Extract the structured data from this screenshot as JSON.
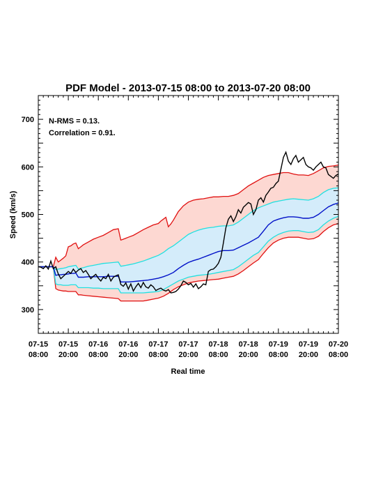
{
  "chart_data": {
    "type": "line",
    "title": "PDF Model - 2013-07-15 08:00 to 2013-07-20 08:00",
    "xlabel": "Real time",
    "ylabel": "Speed (km/s)",
    "annotations": [
      "N-RMS = 0.13.",
      "Correlation = 0.91."
    ],
    "xlim": [
      0,
      120
    ],
    "ylim": [
      250,
      750
    ],
    "x_unit": "hours after 2013-07-15 08:00",
    "x_ticks": [
      {
        "value": 0,
        "line1": "07-15",
        "line2": "08:00"
      },
      {
        "value": 12,
        "line1": "07-15",
        "line2": "20:00"
      },
      {
        "value": 24,
        "line1": "07-16",
        "line2": "08:00"
      },
      {
        "value": 36,
        "line1": "07-16",
        "line2": "20:00"
      },
      {
        "value": 48,
        "line1": "07-17",
        "line2": "08:00"
      },
      {
        "value": 60,
        "line1": "07-17",
        "line2": "20:00"
      },
      {
        "value": 72,
        "line1": "07-18",
        "line2": "08:00"
      },
      {
        "value": 84,
        "line1": "07-18",
        "line2": "20:00"
      },
      {
        "value": 96,
        "line1": "07-19",
        "line2": "08:00"
      },
      {
        "value": 108,
        "line1": "07-19",
        "line2": "20:00"
      },
      {
        "value": 120,
        "line1": "07-20",
        "line2": "08:00"
      }
    ],
    "y_ticks": [
      300,
      400,
      500,
      600,
      700
    ],
    "colors": {
      "outer_band_fill": "#fdd8d2",
      "inner_band_fill": "#d4ecfa",
      "outer_line": "#e01010",
      "inner_line": "#20e0e0",
      "median_line": "#0010c8",
      "observed_line": "#000000"
    },
    "series": [
      {
        "role": "outer-upper",
        "x": [
          0,
          6,
          7,
          8,
          9,
          10,
          11,
          12,
          13,
          14,
          15,
          16,
          17,
          18,
          20,
          22,
          24,
          26,
          28,
          30,
          32,
          33,
          34,
          35,
          36,
          38,
          40,
          42,
          44,
          46,
          48,
          49,
          50,
          51,
          52,
          53,
          54,
          56,
          58,
          60,
          62,
          64,
          66,
          68,
          70,
          72,
          74,
          76,
          78,
          80,
          82,
          84,
          86,
          88,
          90,
          92,
          94,
          96,
          98,
          100,
          102,
          104,
          106,
          108,
          110,
          112,
          114,
          116,
          118,
          120
        ],
        "y": [
          390,
          390,
          410,
          400,
          404,
          408,
          413,
          432,
          434,
          438,
          440,
          428,
          432,
          436,
          442,
          448,
          452,
          456,
          462,
          468,
          470,
          446,
          448,
          450,
          452,
          456,
          462,
          468,
          473,
          478,
          481,
          486,
          490,
          494,
          474,
          480,
          488,
          506,
          518,
          526,
          530,
          532,
          533,
          535,
          537,
          537,
          538,
          538,
          540,
          544,
          552,
          560,
          566,
          572,
          578,
          582,
          584,
          586,
          588,
          588,
          585,
          583,
          583,
          582,
          586,
          592,
          598,
          601,
          602,
          604
        ]
      },
      {
        "role": "inner-upper",
        "x": [
          0,
          6,
          7,
          8,
          9,
          10,
          11,
          12,
          13,
          14,
          15,
          16,
          17,
          18,
          20,
          22,
          24,
          26,
          28,
          30,
          32,
          33,
          34,
          35,
          36,
          38,
          40,
          42,
          44,
          46,
          48,
          50,
          52,
          54,
          56,
          58,
          60,
          62,
          64,
          66,
          68,
          70,
          72,
          74,
          76,
          78,
          80,
          82,
          84,
          86,
          88,
          90,
          92,
          94,
          96,
          98,
          100,
          102,
          104,
          106,
          108,
          110,
          112,
          114,
          116,
          118,
          120
        ],
        "y": [
          390,
          390,
          384,
          385,
          386,
          387,
          388,
          390,
          391,
          392,
          393,
          385,
          387,
          388,
          391,
          393,
          395,
          397,
          398,
          399,
          400,
          391,
          392,
          393,
          394,
          396,
          399,
          402,
          406,
          410,
          414,
          420,
          428,
          434,
          442,
          450,
          458,
          463,
          467,
          470,
          472,
          473,
          475,
          476,
          476,
          478,
          484,
          492,
          500,
          508,
          514,
          518,
          522,
          526,
          528,
          530,
          532,
          533,
          532,
          531,
          530,
          533,
          538,
          546,
          552,
          555,
          556
        ]
      },
      {
        "role": "median",
        "x": [
          0,
          6,
          7,
          8,
          9,
          10,
          11,
          12,
          13,
          14,
          15,
          16,
          17,
          18,
          20,
          22,
          24,
          26,
          28,
          30,
          32,
          33,
          34,
          35,
          36,
          38,
          40,
          42,
          44,
          46,
          48,
          50,
          52,
          54,
          56,
          58,
          60,
          62,
          64,
          66,
          68,
          70,
          72,
          74,
          76,
          78,
          80,
          82,
          84,
          86,
          88,
          90,
          92,
          94,
          96,
          98,
          100,
          102,
          104,
          106,
          108,
          110,
          112,
          114,
          116,
          118,
          120
        ],
        "y": [
          390,
          390,
          372,
          373,
          373,
          374,
          374,
          375,
          376,
          376,
          377,
          368,
          368,
          368,
          369,
          369,
          369,
          369,
          370,
          370,
          370,
          358,
          358,
          358,
          358,
          359,
          360,
          361,
          362,
          364,
          366,
          369,
          373,
          378,
          386,
          393,
          399,
          403,
          406,
          410,
          414,
          418,
          422,
          424,
          424,
          425,
          430,
          435,
          440,
          446,
          452,
          465,
          478,
          486,
          490,
          493,
          495,
          495,
          494,
          492,
          492,
          494,
          500,
          508,
          516,
          521,
          524
        ]
      },
      {
        "role": "inner-lower",
        "x": [
          0,
          6,
          7,
          8,
          9,
          10,
          11,
          12,
          13,
          14,
          15,
          16,
          17,
          18,
          20,
          22,
          24,
          26,
          28,
          30,
          32,
          33,
          34,
          35,
          36,
          38,
          40,
          42,
          44,
          46,
          48,
          50,
          52,
          54,
          56,
          58,
          60,
          62,
          64,
          66,
          68,
          70,
          72,
          74,
          76,
          78,
          80,
          82,
          84,
          86,
          88,
          90,
          92,
          94,
          96,
          98,
          100,
          102,
          104,
          106,
          108,
          110,
          112,
          114,
          116,
          118,
          120
        ],
        "y": [
          390,
          390,
          354,
          352,
          352,
          351,
          351,
          351,
          352,
          352,
          352,
          346,
          346,
          346,
          346,
          345,
          345,
          344,
          344,
          344,
          344,
          335,
          335,
          335,
          335,
          335,
          335,
          335,
          336,
          337,
          338,
          342,
          348,
          354,
          360,
          364,
          368,
          370,
          372,
          373,
          374,
          376,
          378,
          380,
          382,
          384,
          390,
          398,
          406,
          414,
          420,
          432,
          444,
          452,
          458,
          462,
          465,
          466,
          466,
          464,
          462,
          463,
          468,
          478,
          486,
          492,
          496
        ]
      },
      {
        "role": "outer-lower",
        "x": [
          0,
          6,
          7,
          8,
          9,
          10,
          11,
          12,
          13,
          14,
          15,
          16,
          17,
          18,
          20,
          22,
          24,
          26,
          28,
          30,
          32,
          33,
          34,
          35,
          36,
          38,
          40,
          42,
          44,
          46,
          48,
          50,
          52,
          54,
          56,
          58,
          60,
          62,
          64,
          66,
          68,
          70,
          72,
          74,
          76,
          78,
          80,
          82,
          84,
          86,
          88,
          90,
          92,
          94,
          96,
          98,
          100,
          102,
          104,
          106,
          108,
          110,
          112,
          114,
          116,
          118,
          120
        ],
        "y": [
          390,
          390,
          344,
          341,
          340,
          339,
          339,
          338,
          338,
          338,
          338,
          331,
          331,
          330,
          329,
          328,
          327,
          326,
          325,
          324,
          323,
          318,
          318,
          318,
          318,
          318,
          318,
          318,
          320,
          322,
          324,
          328,
          334,
          342,
          348,
          352,
          356,
          358,
          360,
          361,
          362,
          363,
          364,
          366,
          368,
          370,
          375,
          382,
          390,
          398,
          405,
          418,
          430,
          440,
          446,
          450,
          452,
          452,
          452,
          450,
          448,
          449,
          454,
          464,
          472,
          478,
          481
        ]
      },
      {
        "role": "observed",
        "x": [
          0,
          1,
          2,
          3,
          4,
          5,
          6,
          7,
          8,
          9,
          10,
          11,
          12,
          13,
          14,
          15,
          16,
          17,
          18,
          19,
          20,
          21,
          22,
          23,
          24,
          25,
          26,
          27,
          28,
          29,
          30,
          31,
          32,
          33,
          34,
          35,
          36,
          37,
          38,
          39,
          40,
          41,
          42,
          43,
          44,
          45,
          46,
          47,
          48,
          49,
          50,
          51,
          52,
          53,
          54,
          55,
          56,
          57,
          58,
          59,
          60,
          61,
          62,
          63,
          64,
          65,
          66,
          67,
          68,
          69,
          70,
          71,
          72,
          73,
          74,
          75,
          76,
          77,
          78,
          79,
          80,
          81,
          82,
          83,
          84,
          85,
          86,
          87,
          88,
          89,
          90,
          91,
          92,
          93,
          94,
          95,
          96,
          97,
          98,
          99,
          100,
          101,
          102,
          103,
          104,
          105,
          106,
          107,
          108,
          109,
          110,
          111,
          112,
          113,
          114,
          115,
          116,
          117,
          118,
          119,
          120
        ],
        "y": [
          390,
          389,
          386,
          392,
          385,
          402,
          386,
          390,
          375,
          365,
          370,
          375,
          380,
          376,
          385,
          378,
          383,
          386,
          378,
          382,
          374,
          365,
          370,
          374,
          366,
          360,
          368,
          365,
          374,
          360,
          368,
          371,
          373,
          353,
          349,
          356,
          343,
          354,
          339,
          348,
          355,
          346,
          357,
          348,
          345,
          352,
          348,
          340,
          343,
          345,
          341,
          339,
          342,
          335,
          336,
          338,
          343,
          350,
          360,
          357,
          352,
          355,
          347,
          354,
          344,
          348,
          354,
          352,
          380,
          384,
          385,
          390,
          397,
          410,
          440,
          472,
          490,
          497,
          485,
          495,
          510,
          503,
          515,
          520,
          525,
          522,
          500,
          510,
          530,
          535,
          526,
          540,
          547,
          555,
          557,
          565,
          570,
          595,
          620,
          631,
          612,
          605,
          617,
          624,
          610,
          615,
          620,
          605,
          600,
          598,
          593,
          600,
          605,
          610,
          600,
          598,
          584,
          580,
          576,
          582,
          585
        ]
      }
    ]
  }
}
